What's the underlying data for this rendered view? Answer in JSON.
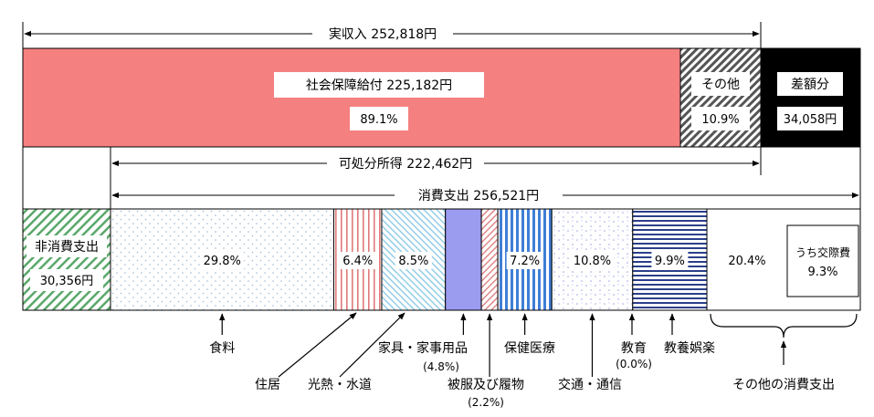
{
  "chart_data": {
    "type": "bar",
    "title": "",
    "income": {
      "label": "実収入",
      "value_text": "252,818円",
      "social_security": {
        "label": "社会保障給付",
        "value_text": "225,182円",
        "pct": 89.1,
        "pct_text": "89.1%"
      },
      "other": {
        "label": "その他",
        "pct": 10.9,
        "pct_text": "10.9%"
      },
      "deficit": {
        "label": "差額分",
        "value_text": "34,058円"
      }
    },
    "disposable": {
      "label": "可処分所得",
      "value_text": "222,462円"
    },
    "spending": {
      "label": "消費支出",
      "value_text": "256,521円"
    },
    "non_consumption": {
      "label": "非消費支出",
      "value_text": "30,356円"
    },
    "categories": [
      {
        "name": "食料",
        "pct": 29.8,
        "pct_text": "29.8%"
      },
      {
        "name": "住居",
        "pct": 6.4,
        "pct_text": "6.4%"
      },
      {
        "name": "光熱・水道",
        "pct": 8.5,
        "pct_text": "8.5%"
      },
      {
        "name": "家具・家事用品",
        "pct": 4.8,
        "pct_text": "(4.8%)"
      },
      {
        "name": "被服及び履物",
        "pct": 2.2,
        "pct_text": "(2.2%)"
      },
      {
        "name": "保健医療",
        "pct": 7.2,
        "pct_text": "7.2%"
      },
      {
        "name": "交通・通信",
        "pct": 10.8,
        "pct_text": "10.8%"
      },
      {
        "name": "教育",
        "pct": 0.0,
        "pct_text": "(0.0%)"
      },
      {
        "name": "教養娯楽",
        "pct": 9.9,
        "pct_text": "9.9%"
      },
      {
        "name": "その他の消費支出",
        "pct": 20.4,
        "pct_text": "20.4%"
      }
    ],
    "sub_item": {
      "label": "うち交際費",
      "pct": 9.3,
      "pct_text": "9.3%"
    }
  }
}
